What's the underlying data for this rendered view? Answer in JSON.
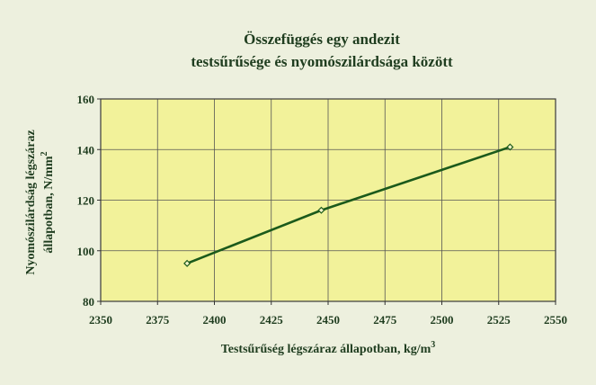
{
  "chart_data": {
    "type": "line",
    "title_line1": "Összefüggés egy andezit",
    "title_line2": "testsűrűsége és nyomószilárdsága között",
    "xlabel": "Testsűrűség légszáraz állapotban, kg/m",
    "xlabel_sup": "3",
    "ylabel_line1": "Nyomószilárdság légszáraz",
    "ylabel_line2": "állapotban, N/mm",
    "ylabel_sup": "2",
    "xlim": [
      2350,
      2550
    ],
    "ylim": [
      80,
      160
    ],
    "xticks": [
      2350,
      2375,
      2400,
      2425,
      2450,
      2475,
      2500,
      2525,
      2550
    ],
    "yticks": [
      80,
      100,
      120,
      140,
      160
    ],
    "grid": true,
    "series": [
      {
        "x": [
          2388,
          2447,
          2530
        ],
        "y": [
          95,
          116,
          141
        ],
        "color": "#1b5a1b"
      }
    ],
    "plot_background": "#f2f29a",
    "text_color": "#1f3d1f"
  }
}
